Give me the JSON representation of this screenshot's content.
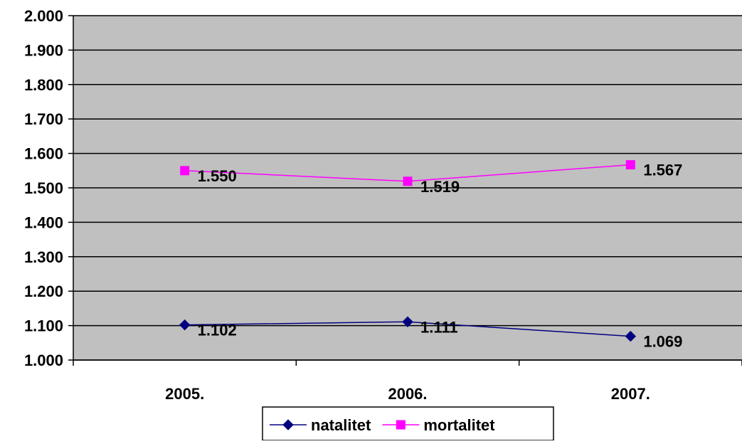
{
  "chart_data": {
    "type": "line",
    "categories": [
      "2005.",
      "2006.",
      "2007."
    ],
    "series": [
      {
        "name": "natalitet",
        "values": [
          1102,
          1111,
          1069
        ],
        "labels": [
          "1.102",
          "1.111",
          "1.069"
        ],
        "color": "#000080",
        "marker": "diamond"
      },
      {
        "name": "mortalitet",
        "values": [
          1550,
          1519,
          1567
        ],
        "labels": [
          "1.550",
          "1.519",
          "1.567"
        ],
        "color": "#FF00FF",
        "marker": "square"
      }
    ],
    "ylim": [
      1000,
      2000
    ],
    "yticks": [
      1000,
      1100,
      1200,
      1300,
      1400,
      1500,
      1600,
      1700,
      1800,
      1900,
      2000
    ],
    "ytick_labels": [
      "1.000",
      "1.100",
      "1.200",
      "1.300",
      "1.400",
      "1.500",
      "1.600",
      "1.700",
      "1.800",
      "1.900",
      "2.000"
    ],
    "title": "",
    "xlabel": "",
    "ylabel": "",
    "grid": true,
    "legend_position": "bottom",
    "plot_background": "#C0C0C0"
  }
}
